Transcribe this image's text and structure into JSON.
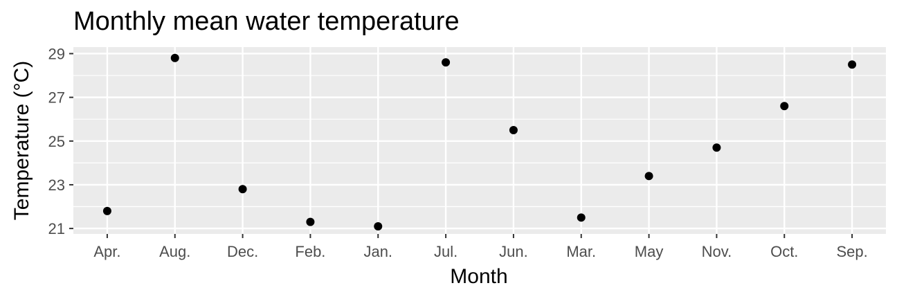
{
  "chart_data": {
    "type": "scatter",
    "title": "Monthly mean water temperature",
    "xlabel": "Month",
    "ylabel": "Temperature (°C)",
    "categories": [
      "Apr.",
      "Aug.",
      "Dec.",
      "Feb.",
      "Jan.",
      "Jul.",
      "Jun.",
      "Mar.",
      "May",
      "Nov.",
      "Oct.",
      "Sep."
    ],
    "values": [
      21.8,
      28.8,
      22.8,
      21.3,
      21.1,
      28.6,
      25.5,
      21.5,
      23.4,
      24.7,
      26.6,
      28.5
    ],
    "yticks": [
      21,
      23,
      25,
      27,
      29
    ],
    "ylim": [
      20.75,
      29.3
    ],
    "grid": true,
    "colors": {
      "panel": "#ebebeb",
      "grid": "#ffffff",
      "point": "#000000"
    }
  }
}
